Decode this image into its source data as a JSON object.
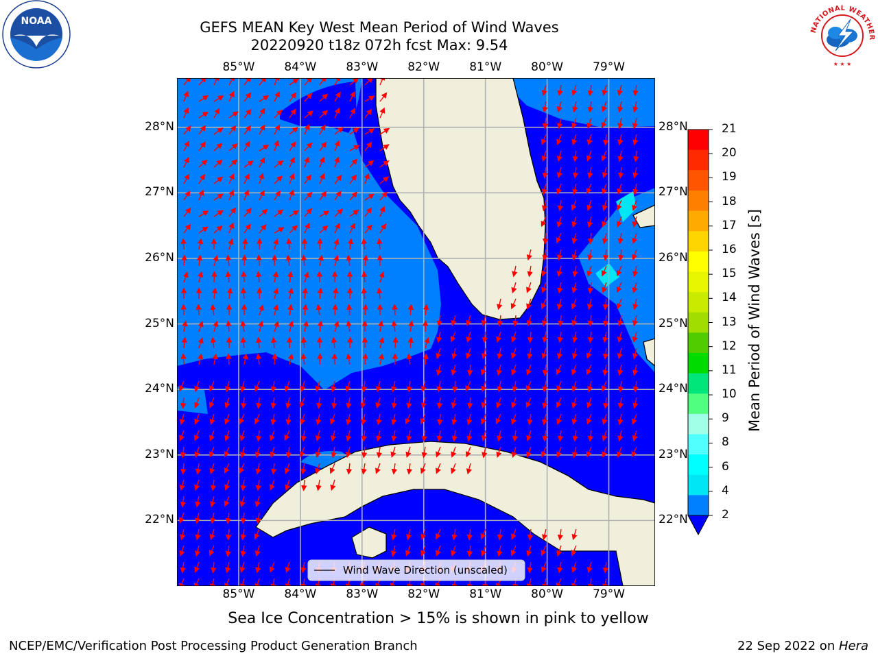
{
  "header": {
    "title_line1": "GEFS MEAN Key West Mean Period of Wind Waves",
    "title_line2": "20220920 t18z 072h fcst   Max: 9.54"
  },
  "logos": {
    "left": {
      "name": "noaa-logo",
      "text": "NOAA",
      "ring_text": "NATIONAL OCEANIC AND ATMOSPHERIC ADMINISTRATION · U.S. DEPARTMENT OF COMMERCE"
    },
    "right": {
      "name": "nws-logo",
      "ring_text": "NATIONAL WEATHER SERVICE"
    }
  },
  "map": {
    "lon_labels": [
      "85°W",
      "84°W",
      "83°W",
      "82°W",
      "81°W",
      "80°W",
      "79°W"
    ],
    "lat_labels": [
      "28°N",
      "27°N",
      "26°N",
      "25°N",
      "24°N",
      "23°N",
      "22°N"
    ],
    "lon_values": [
      -85,
      -84,
      -83,
      -82,
      -81,
      -80,
      -79
    ],
    "lat_values": [
      28,
      27,
      26,
      25,
      24,
      23,
      22
    ],
    "extent": {
      "lon_min": -86.0,
      "lon_max": -78.25,
      "lat_min": 21.0,
      "lat_max": 28.75
    },
    "legend_label": "Wind Wave Direction (unscaled)",
    "arrow_color": "#ff0000",
    "land_color": "#efefdc",
    "gridline_color": "#b0b0b0"
  },
  "colorbar": {
    "label": "Mean Period of Wind Waves [s]",
    "ticks": [
      "21",
      "20",
      "19",
      "18",
      "17",
      "16",
      "15",
      "14",
      "13",
      "12",
      "11",
      "10",
      "9",
      "8",
      "6",
      "4",
      "2"
    ],
    "colors": [
      "#ff0000",
      "#ff2a00",
      "#ff5500",
      "#ff8000",
      "#ffaa00",
      "#ffd500",
      "#ffff00",
      "#e6f500",
      "#c8eb00",
      "#a0dc00",
      "#50cc00",
      "#00dc00",
      "#00e67a",
      "#50ff80",
      "#a0ffe6",
      "#50ffff",
      "#00ffff",
      "#00e6f5",
      "#0080ff"
    ],
    "extend_color": "#0000ff"
  },
  "chart_data": {
    "type": "heatmap",
    "title": "GEFS MEAN Key West Mean Period of Wind Waves",
    "subtitle": "20220920 t18z 072h fcst   Max: 9.54",
    "variable": "Mean Period of Wind Waves [s]",
    "max_value": 9.54,
    "x_ticks": [
      "85°W",
      "84°W",
      "83°W",
      "82°W",
      "81°W",
      "80°W",
      "79°W"
    ],
    "y_ticks": [
      "28°N",
      "27°N",
      "26°N",
      "25°N",
      "24°N",
      "23°N",
      "22°N"
    ],
    "colorbar_levels": [
      2,
      4,
      6,
      8,
      9,
      10,
      11,
      12,
      13,
      14,
      15,
      16,
      17,
      18,
      19,
      20,
      21
    ],
    "legend": "Wind Wave Direction (unscaled)"
  },
  "notes": {
    "sea_ice": "Sea Ice Concentration > 15% is shown in pink to yellow"
  },
  "footer": {
    "left": "NCEP/EMC/Verification Post Processing Product Generation Branch",
    "right_date": "22 Sep 2022 on ",
    "right_host": "Hera"
  }
}
